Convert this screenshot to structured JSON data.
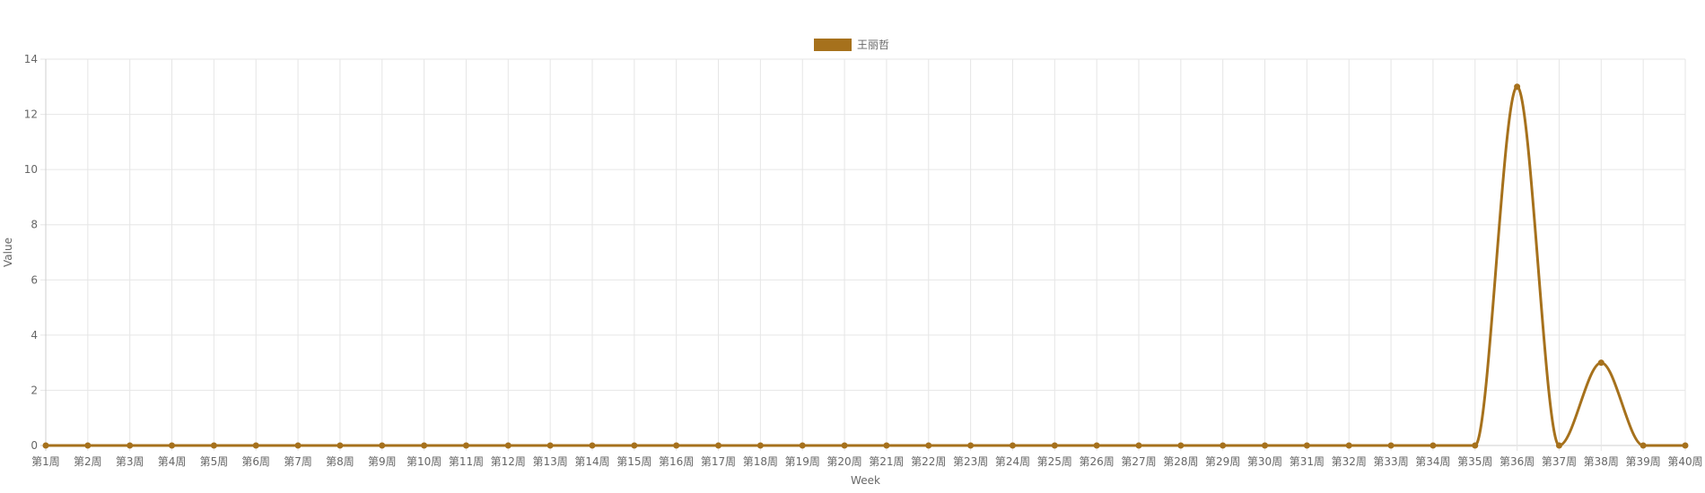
{
  "chart_data": {
    "type": "line",
    "categories": [
      "第1周",
      "第2周",
      "第3周",
      "第4周",
      "第5周",
      "第6周",
      "第7周",
      "第8周",
      "第9周",
      "第10周",
      "第11周",
      "第12周",
      "第13周",
      "第14周",
      "第15周",
      "第16周",
      "第17周",
      "第18周",
      "第19周",
      "第20周",
      "第21周",
      "第22周",
      "第23周",
      "第24周",
      "第25周",
      "第26周",
      "第27周",
      "第28周",
      "第29周",
      "第30周",
      "第31周",
      "第32周",
      "第33周",
      "第34周",
      "第35周",
      "第36周",
      "第37周",
      "第38周",
      "第39周",
      "第40周"
    ],
    "series": [
      {
        "name": "王丽哲",
        "color": "#A6711C",
        "values": [
          0,
          0,
          0,
          0,
          0,
          0,
          0,
          0,
          0,
          0,
          0,
          0,
          0,
          0,
          0,
          0,
          0,
          0,
          0,
          0,
          0,
          0,
          0,
          0,
          0,
          0,
          0,
          0,
          0,
          0,
          0,
          0,
          0,
          0,
          0,
          13,
          0,
          3,
          0,
          0
        ]
      }
    ],
    "xlabel": "Week",
    "ylabel": "Value",
    "ylim": [
      0,
      14
    ],
    "yticks": [
      "0",
      "2",
      "4",
      "6",
      "8",
      "10",
      "12",
      "14"
    ],
    "grid": true,
    "legend_position": "top-center",
    "smooth": true
  }
}
